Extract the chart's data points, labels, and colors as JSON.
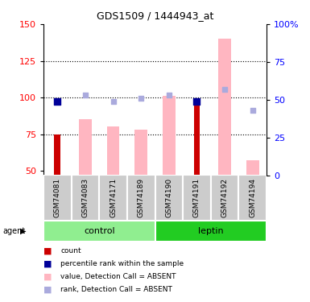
{
  "title": "GDS1509 / 1444943_at",
  "samples": [
    "GSM74081",
    "GSM74083",
    "GSM74171",
    "GSM74189",
    "GSM74190",
    "GSM74191",
    "GSM74192",
    "GSM74194"
  ],
  "ylim_left": [
    47,
    150
  ],
  "ylim_right": [
    0,
    100
  ],
  "yticks_left": [
    50,
    75,
    100,
    125,
    150
  ],
  "yticks_right": [
    0,
    25,
    50,
    75,
    100
  ],
  "ytick_labels_right": [
    "0",
    "25",
    "50",
    "75",
    "100%"
  ],
  "red_bars": {
    "values": [
      75,
      null,
      null,
      null,
      null,
      95,
      null,
      null
    ],
    "color": "#CC0000"
  },
  "pink_bars": {
    "values": [
      null,
      85,
      80,
      78,
      101,
      null,
      140,
      57
    ],
    "color": "#FFB6C1"
  },
  "blue_squares_rank": {
    "values": [
      49,
      null,
      null,
      null,
      null,
      49,
      null,
      null
    ],
    "color": "#000099",
    "size": 28
  },
  "light_blue_squares_rank": {
    "values": [
      null,
      53,
      49,
      51,
      53,
      null,
      57,
      43
    ],
    "color": "#AAAADD",
    "size": 22
  },
  "bar_width": 0.45,
  "red_bar_width": 0.22,
  "group_control_color": "#90EE90",
  "group_leptin_color": "#22CC22",
  "sample_box_color": "#CCCCCC",
  "legend": [
    {
      "label": "count",
      "color": "#CC0000"
    },
    {
      "label": "percentile rank within the sample",
      "color": "#000099"
    },
    {
      "label": "value, Detection Call = ABSENT",
      "color": "#FFB6C1"
    },
    {
      "label": "rank, Detection Call = ABSENT",
      "color": "#AAAADD"
    }
  ]
}
